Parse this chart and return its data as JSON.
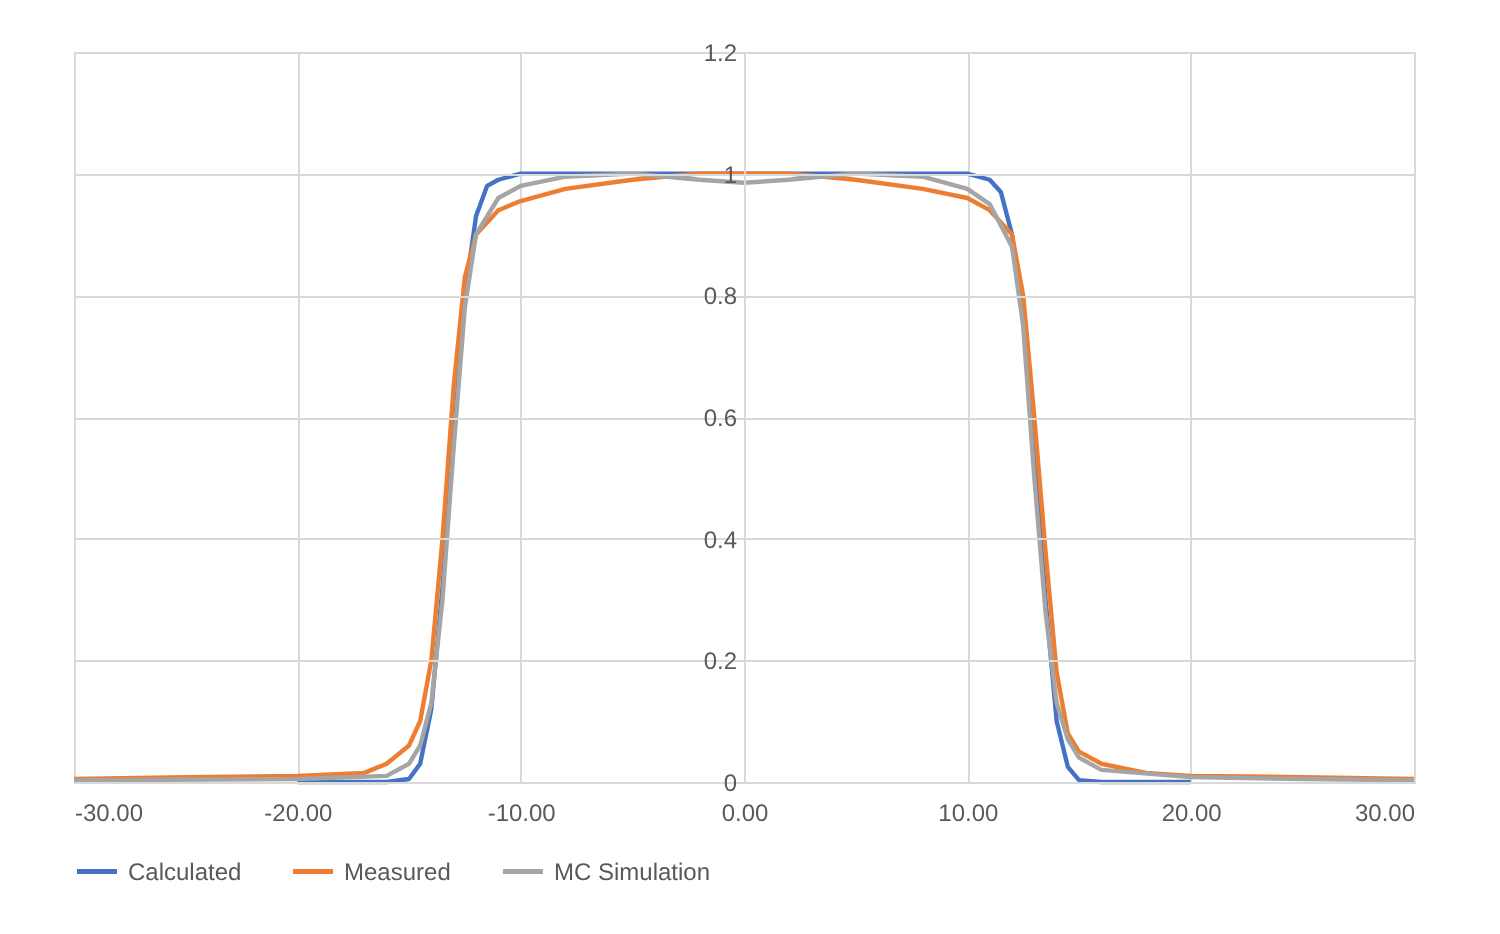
{
  "chart_data": {
    "type": "line",
    "xlim": [
      -30,
      30
    ],
    "xticks": [
      {
        "value": -30,
        "label": "-30.00"
      },
      {
        "value": -20,
        "label": "-20.00"
      },
      {
        "value": -10,
        "label": "-10.00"
      },
      {
        "value": 0,
        "label": "0.00"
      },
      {
        "value": 10,
        "label": "10.00"
      },
      {
        "value": 20,
        "label": "20.00"
      },
      {
        "value": 30,
        "label": "30.00"
      }
    ],
    "ylim": [
      0,
      1.2
    ],
    "yticks": [
      0,
      0.2,
      0.4,
      0.6,
      0.8,
      1,
      1.2
    ],
    "grid": true,
    "legend": "bottom",
    "marker": "none",
    "line_style": "solid",
    "series": [
      {
        "name": "Calculated",
        "color": "#4472c4",
        "x": [
          -20,
          -16,
          -15,
          -14.5,
          -14,
          -13.5,
          -13,
          -12.5,
          -12,
          -11.5,
          -11,
          -10,
          -5,
          0,
          5,
          10,
          11,
          11.5,
          12,
          12.5,
          13,
          13.5,
          14,
          14.5,
          15,
          16,
          20
        ],
        "values": [
          0,
          0,
          0.005,
          0.03,
          0.12,
          0.32,
          0.56,
          0.8,
          0.93,
          0.98,
          0.99,
          1,
          1,
          1,
          1,
          1,
          0.99,
          0.97,
          0.9,
          0.76,
          0.54,
          0.3,
          0.1,
          0.025,
          0.003,
          0,
          0
        ]
      },
      {
        "name": "Measured",
        "color": "#ed7d31",
        "x": [
          -30,
          -25,
          -20,
          -17,
          -16,
          -15,
          -14.5,
          -14,
          -13.5,
          -13,
          -12.5,
          -12,
          -11,
          -10,
          -8,
          -5,
          -2,
          0,
          2,
          5,
          8,
          10,
          11,
          12,
          12.5,
          13,
          13.5,
          14,
          14.5,
          15,
          16,
          18,
          20,
          25,
          30
        ],
        "values": [
          0.005,
          0.008,
          0.01,
          0.015,
          0.03,
          0.06,
          0.1,
          0.2,
          0.4,
          0.65,
          0.83,
          0.9,
          0.94,
          0.955,
          0.975,
          0.99,
          1,
          1,
          1,
          0.99,
          0.975,
          0.96,
          0.94,
          0.9,
          0.8,
          0.6,
          0.38,
          0.18,
          0.08,
          0.05,
          0.03,
          0.015,
          0.01,
          0.008,
          0.005
        ]
      },
      {
        "name": "MC Simulation",
        "color": "#a5a5a5",
        "x": [
          -30,
          -20,
          -16,
          -15,
          -14.5,
          -14,
          -13.5,
          -13,
          -12.5,
          -12,
          -11,
          -10,
          -8,
          -5,
          -2,
          0,
          2,
          5,
          8,
          10,
          11,
          12,
          12.5,
          13,
          13.5,
          14,
          14.5,
          15,
          16,
          20,
          25,
          30
        ],
        "values": [
          0.003,
          0.005,
          0.01,
          0.03,
          0.06,
          0.13,
          0.3,
          0.55,
          0.78,
          0.9,
          0.96,
          0.98,
          0.995,
          1,
          0.99,
          0.985,
          0.99,
          1,
          0.995,
          0.975,
          0.95,
          0.88,
          0.75,
          0.5,
          0.28,
          0.13,
          0.07,
          0.04,
          0.02,
          0.008,
          0.005,
          0.003
        ]
      }
    ]
  }
}
